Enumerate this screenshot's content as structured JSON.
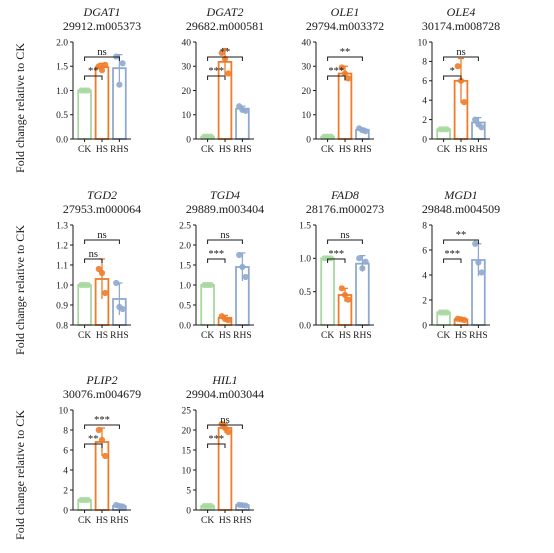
{
  "y_axis_label": "Fold change relative to CK",
  "colors": {
    "CK": "#a8d8a0",
    "HS": "#ee7c2a",
    "RHS": "#8fa9cf",
    "axis": "#1a1a1a"
  },
  "chart_data": [
    {
      "type": "bar",
      "gene": "DGAT1",
      "accession": "29912.m005373",
      "categories": [
        "CK",
        "HS",
        "RHS"
      ],
      "values": [
        1.0,
        1.48,
        1.46
      ],
      "errors": [
        0.0,
        0.08,
        0.28
      ],
      "points": [
        [
          1.0,
          1.0,
          1.0
        ],
        [
          1.5,
          1.42,
          1.53
        ],
        [
          1.7,
          1.12,
          1.56
        ]
      ],
      "ylim": [
        0.0,
        2.0
      ],
      "yticks": [
        "0.0",
        "0.5",
        "1.0",
        "1.5",
        "2.0"
      ],
      "significance": [
        {
          "pair": [
            "CK",
            "HS"
          ],
          "label": "**"
        },
        {
          "pair": [
            "CK",
            "RHS"
          ],
          "label": "ns"
        }
      ]
    },
    {
      "type": "bar",
      "gene": "DGAT2",
      "accession": "29682.m000581",
      "categories": [
        "CK",
        "HS",
        "RHS"
      ],
      "values": [
        1.0,
        31.8,
        12.5
      ],
      "errors": [
        0.0,
        5.5,
        1.0
      ],
      "points": [
        [
          1.0,
          1.0,
          1.0
        ],
        [
          35.5,
          33.0,
          27.0
        ],
        [
          13.5,
          12.0,
          11.6
        ]
      ],
      "ylim": [
        0,
        40
      ],
      "yticks": [
        "0",
        "10",
        "20",
        "30",
        "40"
      ],
      "significance": [
        {
          "pair": [
            "CK",
            "HS"
          ],
          "label": "***"
        },
        {
          "pair": [
            "CK",
            "RHS"
          ],
          "label": "**"
        }
      ]
    },
    {
      "type": "bar",
      "gene": "OLE1",
      "accession": "29794.m003372",
      "categories": [
        "CK",
        "HS",
        "RHS"
      ],
      "values": [
        1.0,
        27.0,
        3.8
      ],
      "errors": [
        0.0,
        3.0,
        0.7
      ],
      "points": [
        [
          1.0,
          1.0,
          1.0
        ],
        [
          29.5,
          27.0,
          25.0
        ],
        [
          4.4,
          3.6,
          3.2
        ]
      ],
      "ylim": [
        0,
        40
      ],
      "yticks": [
        "0",
        "10",
        "20",
        "30",
        "40"
      ],
      "significance": [
        {
          "pair": [
            "CK",
            "HS"
          ],
          "label": "***"
        },
        {
          "pair": [
            "CK",
            "RHS"
          ],
          "label": "**"
        }
      ]
    },
    {
      "type": "bar",
      "gene": "OLE4",
      "accession": "30174.m008728",
      "categories": [
        "CK",
        "HS",
        "RHS"
      ],
      "values": [
        1.0,
        6.0,
        1.7
      ],
      "errors": [
        0.0,
        2.3,
        0.5
      ],
      "points": [
        [
          1.0,
          1.0,
          1.0
        ],
        [
          7.5,
          6.0,
          3.8
        ],
        [
          2.0,
          1.5,
          1.2
        ]
      ],
      "ylim": [
        0,
        10
      ],
      "yticks": [
        "0",
        "2",
        "4",
        "6",
        "8",
        "10"
      ],
      "significance": [
        {
          "pair": [
            "CK",
            "HS"
          ],
          "label": "*"
        },
        {
          "pair": [
            "CK",
            "RHS"
          ],
          "label": "ns"
        }
      ]
    },
    {
      "type": "bar",
      "gene": "TGD2",
      "accession": "27953.m000064",
      "categories": [
        "CK",
        "HS",
        "RHS"
      ],
      "values": [
        1.0,
        1.03,
        0.93
      ],
      "errors": [
        0.0,
        0.1,
        0.08
      ],
      "points": [
        [
          1.0,
          1.0,
          1.0
        ],
        [
          1.08,
          1.06,
          0.96
        ],
        [
          1.01,
          0.89,
          0.88
        ]
      ],
      "ylim": [
        0.8,
        1.3
      ],
      "yticks": [
        "0.8",
        "0.9",
        "1.0",
        "1.1",
        "1.2",
        "1.3"
      ],
      "significance": [
        {
          "pair": [
            "CK",
            "HS"
          ],
          "label": "ns"
        },
        {
          "pair": [
            "CK",
            "RHS"
          ],
          "label": "ns"
        }
      ]
    },
    {
      "type": "bar",
      "gene": "TGD4",
      "accession": "29889.m003404",
      "categories": [
        "CK",
        "HS",
        "RHS"
      ],
      "values": [
        1.0,
        0.18,
        1.45
      ],
      "errors": [
        0.0,
        0.06,
        0.35
      ],
      "points": [
        [
          1.0,
          1.0,
          1.0
        ],
        [
          0.22,
          0.15,
          0.12
        ],
        [
          1.75,
          1.45,
          1.2
        ]
      ],
      "ylim": [
        0.0,
        2.5
      ],
      "yticks": [
        "0.0",
        "0.5",
        "1.0",
        "1.5",
        "2.0",
        "2.5"
      ],
      "significance": [
        {
          "pair": [
            "CK",
            "HS"
          ],
          "label": "***"
        },
        {
          "pair": [
            "CK",
            "RHS"
          ],
          "label": "ns"
        }
      ]
    },
    {
      "type": "bar",
      "gene": "FAD8",
      "accession": "28176.m000273",
      "categories": [
        "CK",
        "HS",
        "RHS"
      ],
      "values": [
        1.0,
        0.45,
        0.92
      ],
      "errors": [
        0.0,
        0.1,
        0.12
      ],
      "points": [
        [
          1.0,
          1.0,
          1.0
        ],
        [
          0.55,
          0.45,
          0.38
        ],
        [
          1.0,
          0.85,
          0.95
        ]
      ],
      "ylim": [
        0.0,
        1.5
      ],
      "yticks": [
        "0.0",
        "0.5",
        "1.0",
        "1.5"
      ],
      "significance": [
        {
          "pair": [
            "CK",
            "HS"
          ],
          "label": "***"
        },
        {
          "pair": [
            "CK",
            "RHS"
          ],
          "label": "ns"
        }
      ]
    },
    {
      "type": "bar",
      "gene": "MGD1",
      "accession": "29848.m004509",
      "categories": [
        "CK",
        "HS",
        "RHS"
      ],
      "values": [
        1.0,
        0.45,
        5.2
      ],
      "errors": [
        0.0,
        0.1,
        1.3
      ],
      "points": [
        [
          1.0,
          1.0,
          1.0
        ],
        [
          0.5,
          0.45,
          0.4
        ],
        [
          6.5,
          5.0,
          4.2
        ]
      ],
      "ylim": [
        0,
        8
      ],
      "yticks": [
        "0",
        "2",
        "4",
        "6",
        "8"
      ],
      "significance": [
        {
          "pair": [
            "CK",
            "HS"
          ],
          "label": "***"
        },
        {
          "pair": [
            "CK",
            "RHS"
          ],
          "label": "**"
        }
      ]
    },
    {
      "type": "bar",
      "gene": "PLIP2",
      "accession": "30076.m004679",
      "categories": [
        "CK",
        "HS",
        "RHS"
      ],
      "values": [
        1.0,
        6.8,
        0.4
      ],
      "errors": [
        0.0,
        1.4,
        0.1
      ],
      "points": [
        [
          1.0,
          1.0,
          1.0
        ],
        [
          8.0,
          7.0,
          5.4
        ],
        [
          0.5,
          0.4,
          0.35
        ]
      ],
      "ylim": [
        0,
        10
      ],
      "yticks": [
        "0",
        "2",
        "4",
        "6",
        "8",
        "10"
      ],
      "significance": [
        {
          "pair": [
            "CK",
            "HS"
          ],
          "label": "**"
        },
        {
          "pair": [
            "CK",
            "RHS"
          ],
          "label": "***"
        }
      ]
    },
    {
      "type": "bar",
      "gene": "HIL1",
      "accession": "29904.m003044",
      "categories": [
        "CK",
        "HS",
        "RHS"
      ],
      "values": [
        1.0,
        20.5,
        1.2
      ],
      "errors": [
        0.0,
        1.2,
        0.2
      ],
      "points": [
        [
          1.0,
          1.0,
          1.0
        ],
        [
          21.5,
          20.5,
          19.5
        ],
        [
          1.3,
          1.2,
          1.1
        ]
      ],
      "ylim": [
        0,
        25
      ],
      "yticks": [
        "0",
        "5",
        "10",
        "15",
        "20",
        "25"
      ],
      "significance": [
        {
          "pair": [
            "CK",
            "HS"
          ],
          "label": "***"
        },
        {
          "pair": [
            "CK",
            "RHS"
          ],
          "label": "ns"
        }
      ]
    }
  ]
}
